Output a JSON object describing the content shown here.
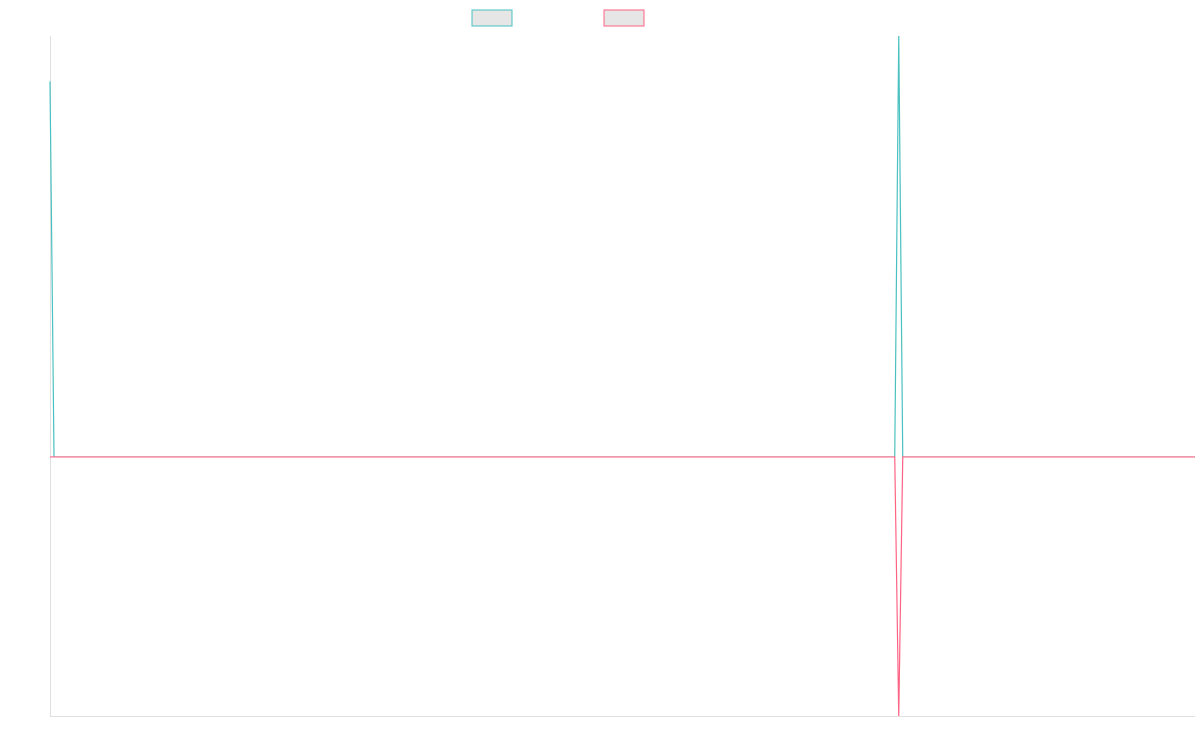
{
  "chart_data": {
    "type": "line",
    "x": [
      0,
      1,
      211,
      212,
      213,
      286
    ],
    "series": [
      {
        "color": "#4bc0c0",
        "values": [
          11.6,
          0,
          0,
          13,
          0,
          0
        ]
      },
      {
        "color": "#ff6384",
        "values": [
          0,
          0,
          0,
          -8,
          0,
          0
        ]
      }
    ],
    "xlim": [
      0,
      286
    ],
    "ylim": [
      -8,
      13
    ],
    "legend": "top"
  }
}
